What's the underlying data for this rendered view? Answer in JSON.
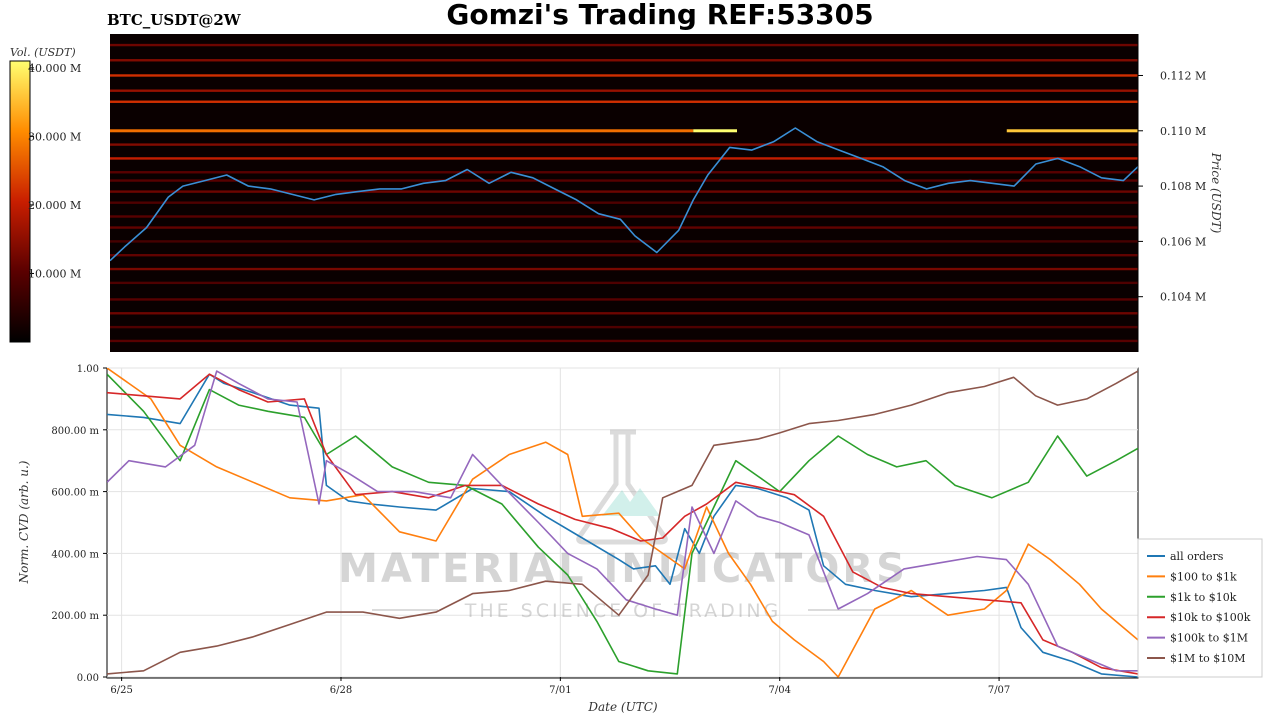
{
  "header": {
    "title": "Gomzi's Trading REF:53305",
    "symbol": "BTC_USDT@2W"
  },
  "colorbar": {
    "label": "Vol. (USDT)",
    "ticks": [
      "10.000 M",
      "20.000 M",
      "30.000 M",
      "40.000 M"
    ],
    "tick_values": [
      10,
      20,
      30,
      40
    ],
    "range": [
      0,
      41
    ],
    "unit_scale": "M"
  },
  "watermark": {
    "line1": "MATERIAL INDICATORS",
    "line2": "THE SCIENCE OF TRADING"
  },
  "colors": {
    "price_line": "#3a8fd6",
    "heatmap_bg": "#0a0000",
    "all_orders": "#1f77b4",
    "r100_1k": "#ff7f0e",
    "r1k_10k": "#2ca02c",
    "r10k_100k": "#d62728",
    "r100k_1m": "#9467bd",
    "r1m_10m": "#8c564b"
  },
  "chart_data": [
    {
      "type": "heatmap",
      "name": "orderbook-heatmap",
      "ylabel": "Price (USDT)",
      "y_ticks": [
        "0.104 M",
        "0.106 M",
        "0.108 M",
        "0.110 M",
        "0.112 M"
      ],
      "y_tick_values": [
        104000,
        106000,
        108000,
        110000,
        112000
      ],
      "ylim": [
        102000,
        113500
      ],
      "xlim": [
        0,
        14.1
      ],
      "liquidity_bands": [
        {
          "price": 113100,
          "vol": 12
        },
        {
          "price": 112550,
          "vol": 14
        },
        {
          "price": 112000,
          "vol": 22
        },
        {
          "price": 111450,
          "vol": 16
        },
        {
          "price": 111050,
          "vol": 22
        },
        {
          "price": 110000,
          "vol": 28,
          "x_end": 8.0
        },
        {
          "price": 110000,
          "vol": 41,
          "x_start": 8.0,
          "x_end": 8.6
        },
        {
          "price": 110000,
          "vol": 36,
          "x_start": 12.3
        },
        {
          "price": 109500,
          "vol": 14
        },
        {
          "price": 109000,
          "vol": 20
        },
        {
          "price": 108500,
          "vol": 10
        },
        {
          "price": 108200,
          "vol": 10
        },
        {
          "price": 107800,
          "vol": 12
        },
        {
          "price": 107400,
          "vol": 9
        },
        {
          "price": 106900,
          "vol": 10
        },
        {
          "price": 106500,
          "vol": 11
        },
        {
          "price": 106000,
          "vol": 8
        },
        {
          "price": 105500,
          "vol": 11
        },
        {
          "price": 105000,
          "vol": 13
        },
        {
          "price": 104500,
          "vol": 9
        },
        {
          "price": 103900,
          "vol": 10
        },
        {
          "price": 103400,
          "vol": 12
        },
        {
          "price": 102900,
          "vol": 9
        },
        {
          "price": 102400,
          "vol": 10
        }
      ],
      "price_series": {
        "x": [
          0,
          0.2,
          0.5,
          0.8,
          1.0,
          1.3,
          1.6,
          1.9,
          2.2,
          2.5,
          2.8,
          3.1,
          3.4,
          3.7,
          4.0,
          4.3,
          4.6,
          4.9,
          5.2,
          5.5,
          5.8,
          6.1,
          6.4,
          6.7,
          7.0,
          7.2,
          7.5,
          7.8,
          8.0,
          8.2,
          8.5,
          8.8,
          9.1,
          9.4,
          9.7,
          10.0,
          10.3,
          10.6,
          10.9,
          11.2,
          11.5,
          11.8,
          12.1,
          12.4,
          12.7,
          13.0,
          13.3,
          13.6,
          13.9,
          14.1
        ],
        "y": [
          105300,
          105800,
          106500,
          107600,
          108000,
          108200,
          108400,
          108000,
          107900,
          107700,
          107500,
          107700,
          107800,
          107900,
          107900,
          108100,
          108200,
          108600,
          108100,
          108500,
          108300,
          107900,
          107500,
          107000,
          106800,
          106200,
          105600,
          106400,
          107500,
          108400,
          109400,
          109300,
          109600,
          110100,
          109600,
          109300,
          109000,
          108700,
          108200,
          107900,
          108100,
          108200,
          108100,
          108000,
          108800,
          109000,
          108700,
          108300,
          108200,
          108700
        ]
      }
    },
    {
      "type": "line",
      "name": "cvd-lines",
      "xlabel": "Date (UTC)",
      "ylabel": "Norm. CVD (arb. u.)",
      "x_ticks": [
        "6/25",
        "6/28",
        "7/01",
        "7/04",
        "7/07"
      ],
      "x_tick_values": [
        0.2,
        3.2,
        6.2,
        9.2,
        12.2
      ],
      "y_ticks": [
        "0.00",
        "200.00 m",
        "400.00 m",
        "600.00 m",
        "800.00 m",
        "1.00"
      ],
      "y_tick_values": [
        0,
        0.2,
        0.4,
        0.6,
        0.8,
        1.0
      ],
      "ylim": [
        0,
        1.0
      ],
      "xlim": [
        0,
        14.1
      ],
      "grid": true,
      "legend_position": "bottom-right",
      "series": [
        {
          "name": "all orders",
          "color": "#1f77b4",
          "x": [
            0,
            0.5,
            1.0,
            1.4,
            1.6,
            2.0,
            2.5,
            2.9,
            3.0,
            3.3,
            3.6,
            4.0,
            4.5,
            5.0,
            5.5,
            6.0,
            6.5,
            7.0,
            7.2,
            7.5,
            7.7,
            7.9,
            8.1,
            8.3,
            8.6,
            8.9,
            9.3,
            9.6,
            9.8,
            10.1,
            10.5,
            11.0,
            11.5,
            12.0,
            12.3,
            12.5,
            12.8,
            13.2,
            13.6,
            14.1
          ],
          "y": [
            0.85,
            0.84,
            0.82,
            0.98,
            0.95,
            0.92,
            0.88,
            0.87,
            0.62,
            0.57,
            0.56,
            0.55,
            0.54,
            0.61,
            0.6,
            0.52,
            0.45,
            0.38,
            0.35,
            0.36,
            0.3,
            0.48,
            0.4,
            0.52,
            0.62,
            0.61,
            0.58,
            0.54,
            0.36,
            0.3,
            0.28,
            0.26,
            0.27,
            0.28,
            0.29,
            0.16,
            0.08,
            0.05,
            0.01,
            0.0
          ]
        },
        {
          "name": "$100 to $1k",
          "color": "#ff7f0e",
          "x": [
            0,
            0.6,
            1.0,
            1.5,
            2.0,
            2.5,
            3.0,
            3.5,
            4.0,
            4.5,
            5.0,
            5.5,
            6.0,
            6.3,
            6.5,
            7.0,
            7.3,
            7.6,
            7.9,
            8.2,
            8.5,
            8.8,
            9.1,
            9.4,
            9.8,
            10.0,
            10.5,
            11.0,
            11.5,
            12.0,
            12.3,
            12.6,
            12.9,
            13.3,
            13.6,
            14.1
          ],
          "y": [
            1.0,
            0.9,
            0.75,
            0.68,
            0.63,
            0.58,
            0.57,
            0.59,
            0.47,
            0.44,
            0.64,
            0.72,
            0.76,
            0.72,
            0.52,
            0.53,
            0.45,
            0.4,
            0.35,
            0.55,
            0.4,
            0.3,
            0.18,
            0.12,
            0.05,
            0.0,
            0.22,
            0.28,
            0.2,
            0.22,
            0.28,
            0.43,
            0.38,
            0.3,
            0.22,
            0.12
          ]
        },
        {
          "name": "$1k to $10k",
          "color": "#2ca02c",
          "x": [
            0,
            0.5,
            1.0,
            1.4,
            1.8,
            2.2,
            2.7,
            3.0,
            3.4,
            3.9,
            4.4,
            4.9,
            5.4,
            5.9,
            6.3,
            6.7,
            7.0,
            7.4,
            7.8,
            8.0,
            8.3,
            8.6,
            8.9,
            9.2,
            9.6,
            10.0,
            10.4,
            10.8,
            11.2,
            11.6,
            12.1,
            12.6,
            13.0,
            13.4,
            13.8,
            14.1
          ],
          "y": [
            0.98,
            0.86,
            0.7,
            0.93,
            0.88,
            0.86,
            0.84,
            0.72,
            0.78,
            0.68,
            0.63,
            0.62,
            0.56,
            0.42,
            0.33,
            0.18,
            0.05,
            0.02,
            0.01,
            0.4,
            0.55,
            0.7,
            0.65,
            0.6,
            0.7,
            0.78,
            0.72,
            0.68,
            0.7,
            0.62,
            0.58,
            0.63,
            0.78,
            0.65,
            0.7,
            0.74
          ]
        },
        {
          "name": "$10k to $100k",
          "color": "#d62728",
          "x": [
            0,
            0.5,
            1.0,
            1.4,
            1.8,
            2.2,
            2.7,
            3.0,
            3.4,
            3.9,
            4.4,
            4.9,
            5.4,
            5.9,
            6.4,
            6.9,
            7.3,
            7.6,
            7.9,
            8.2,
            8.6,
            9.0,
            9.4,
            9.8,
            10.2,
            10.6,
            11.0,
            11.5,
            12.0,
            12.5,
            12.8,
            13.2,
            13.6,
            14.1
          ],
          "y": [
            0.92,
            0.91,
            0.9,
            0.98,
            0.93,
            0.89,
            0.9,
            0.72,
            0.59,
            0.6,
            0.58,
            0.62,
            0.62,
            0.56,
            0.51,
            0.48,
            0.44,
            0.45,
            0.52,
            0.56,
            0.63,
            0.61,
            0.59,
            0.52,
            0.34,
            0.29,
            0.27,
            0.26,
            0.25,
            0.24,
            0.12,
            0.08,
            0.03,
            0.01
          ]
        },
        {
          "name": "$100k to $1M",
          "color": "#9467bd",
          "x": [
            0,
            0.3,
            0.8,
            1.2,
            1.5,
            1.8,
            2.2,
            2.6,
            2.9,
            3.0,
            3.3,
            3.7,
            4.2,
            4.7,
            5.0,
            5.4,
            5.9,
            6.3,
            6.7,
            7.1,
            7.5,
            7.8,
            8.0,
            8.3,
            8.6,
            8.9,
            9.2,
            9.6,
            10.0,
            10.4,
            10.9,
            11.4,
            11.9,
            12.3,
            12.6,
            13.0,
            13.4,
            13.8,
            14.1
          ],
          "y": [
            0.63,
            0.7,
            0.68,
            0.75,
            0.99,
            0.95,
            0.9,
            0.89,
            0.56,
            0.7,
            0.66,
            0.6,
            0.6,
            0.58,
            0.72,
            0.62,
            0.5,
            0.4,
            0.35,
            0.25,
            0.22,
            0.2,
            0.55,
            0.4,
            0.57,
            0.52,
            0.5,
            0.46,
            0.22,
            0.27,
            0.35,
            0.37,
            0.39,
            0.38,
            0.3,
            0.1,
            0.06,
            0.02,
            0.02
          ]
        },
        {
          "name": "$1M to $10M",
          "color": "#8c564b",
          "x": [
            0,
            0.5,
            1.0,
            1.5,
            2.0,
            2.5,
            3.0,
            3.5,
            4.0,
            4.5,
            5.0,
            5.5,
            6.0,
            6.5,
            7.0,
            7.4,
            7.6,
            7.8,
            8.0,
            8.3,
            8.6,
            8.9,
            9.2,
            9.6,
            10.0,
            10.5,
            11.0,
            11.5,
            12.0,
            12.4,
            12.7,
            13.0,
            13.4,
            13.8,
            14.1
          ],
          "y": [
            0.01,
            0.02,
            0.08,
            0.1,
            0.13,
            0.17,
            0.21,
            0.21,
            0.19,
            0.21,
            0.27,
            0.28,
            0.31,
            0.3,
            0.2,
            0.33,
            0.58,
            0.6,
            0.62,
            0.75,
            0.76,
            0.77,
            0.79,
            0.82,
            0.83,
            0.85,
            0.88,
            0.92,
            0.94,
            0.97,
            0.91,
            0.88,
            0.9,
            0.95,
            0.99
          ]
        }
      ]
    }
  ]
}
